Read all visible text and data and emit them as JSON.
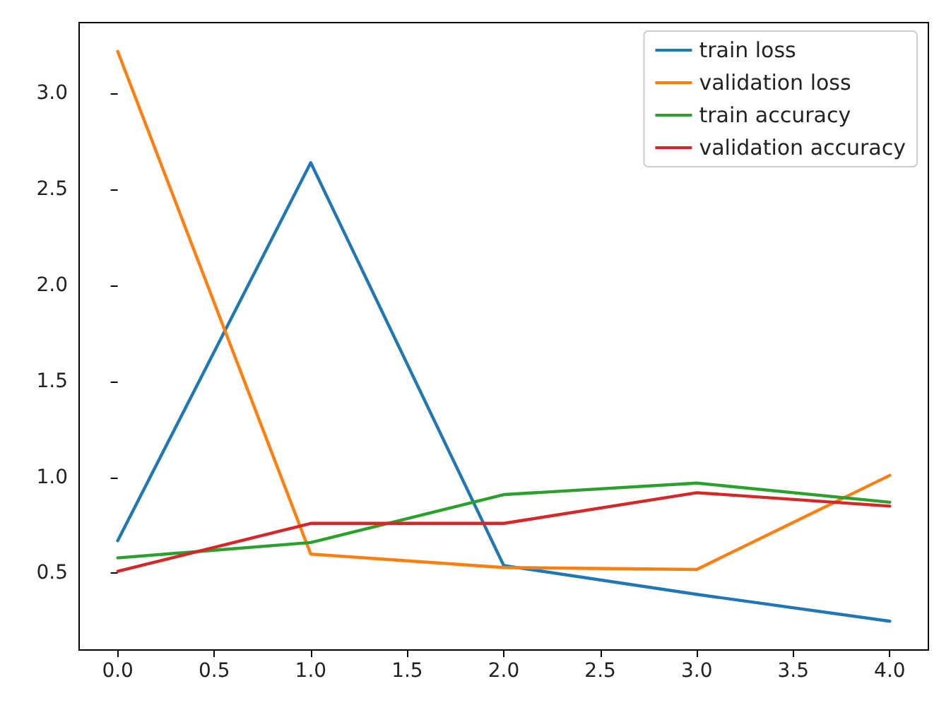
{
  "chart_data": {
    "type": "line",
    "x": [
      0,
      1,
      2,
      3,
      4
    ],
    "series": [
      {
        "name": "train loss",
        "color": "#1f77b4",
        "values": [
          0.67,
          2.64,
          0.54,
          0.39,
          0.25
        ]
      },
      {
        "name": "validation loss",
        "color": "#ff7f0e",
        "values": [
          3.22,
          0.6,
          0.53,
          0.52,
          1.01
        ]
      },
      {
        "name": "train accuracy",
        "color": "#2ca02c",
        "values": [
          0.58,
          0.66,
          0.91,
          0.97,
          0.87
        ]
      },
      {
        "name": "validation accuracy",
        "color": "#d62728",
        "values": [
          0.51,
          0.76,
          0.76,
          0.92,
          0.85
        ]
      }
    ],
    "xlim": [
      -0.2,
      4.2
    ],
    "xticks": [
      {
        "value": 0,
        "label": "0.0"
      },
      {
        "value": 0.5,
        "label": "0.5"
      },
      {
        "value": 1,
        "label": "1.0"
      },
      {
        "value": 1.5,
        "label": "1.5"
      },
      {
        "value": 2,
        "label": "2.0"
      },
      {
        "value": 2.5,
        "label": "2.5"
      },
      {
        "value": 3,
        "label": "3.0"
      },
      {
        "value": 3.5,
        "label": "3.5"
      },
      {
        "value": 4,
        "label": "4.0"
      }
    ],
    "ylim": [
      0.1,
      3.37
    ],
    "yticks": [
      {
        "value": 0.5,
        "label": "0.5"
      },
      {
        "value": 1,
        "label": "1.0"
      },
      {
        "value": 1.5,
        "label": "1.5"
      },
      {
        "value": 2,
        "label": "2.0"
      },
      {
        "value": 2.5,
        "label": "2.5"
      },
      {
        "value": 3,
        "label": "3.0"
      }
    ],
    "legend": "top right",
    "marker": "none",
    "line_style": "solid",
    "grid": false
  }
}
